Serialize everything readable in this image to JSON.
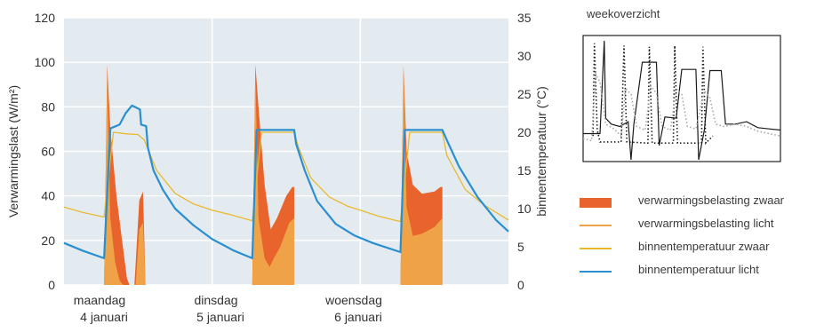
{
  "chart_data": [
    {
      "type": "area",
      "title": "",
      "ylabel_left": "Verwarmingslast (W/m²)",
      "ylabel_right": "binnentemperatuur (°C)",
      "ylim_left": [
        0,
        120
      ],
      "ylim_right": [
        0,
        35
      ],
      "yticks_left": [
        "0",
        "20",
        "40",
        "60",
        "80",
        "100",
        "120"
      ],
      "yticks_right": [
        "0",
        "5",
        "10",
        "15",
        "20",
        "25",
        "30",
        "35"
      ],
      "day_labels": [
        {
          "line1": "maandag",
          "line2": "4 januari"
        },
        {
          "line1": "dinsdag",
          "line2": "5 januari"
        },
        {
          "line1": "woensdag",
          "line2": "6 januari"
        }
      ],
      "x_unit": "hours since start of maandag 4 januari",
      "xlim": [
        0,
        72
      ],
      "grid": true,
      "series": [
        {
          "name": "verwarmingsbelasting zwaar",
          "axis": "left",
          "style": "filled-area",
          "color": "#e8642c",
          "points": [
            [
              6.5,
              0
            ],
            [
              7.0,
              99
            ],
            [
              7.5,
              70
            ],
            [
              8.5,
              40
            ],
            [
              9.5,
              18
            ],
            [
              10.2,
              3
            ],
            [
              10.6,
              0
            ],
            [
              11.4,
              0
            ],
            [
              12.2,
              38
            ],
            [
              12.8,
              42
            ],
            [
              13.2,
              0
            ],
            [
              30.5,
              0
            ],
            [
              31.0,
              99
            ],
            [
              31.5,
              80
            ],
            [
              32.5,
              45
            ],
            [
              33.5,
              25
            ],
            [
              34.5,
              30
            ],
            [
              36,
              40
            ],
            [
              37,
              44
            ],
            [
              37.3,
              44
            ],
            [
              37.3,
              0
            ],
            [
              54.5,
              0
            ],
            [
              55.0,
              99
            ],
            [
              55.5,
              60
            ],
            [
              56.5,
              45
            ],
            [
              58,
              41
            ],
            [
              60,
              42
            ],
            [
              61,
              44
            ],
            [
              61.3,
              44
            ],
            [
              61.3,
              0
            ]
          ]
        },
        {
          "name": "verwarmingsbelasting licht",
          "axis": "left",
          "style": "filled-area",
          "color": "#f0a247",
          "points": [
            [
              6.5,
              0
            ],
            [
              7.0,
              95
            ],
            [
              7.5,
              30
            ],
            [
              8.3,
              10
            ],
            [
              9.0,
              2
            ],
            [
              9.6,
              0
            ],
            [
              11.6,
              0
            ],
            [
              12.2,
              25
            ],
            [
              12.8,
              28
            ],
            [
              13.2,
              0
            ],
            [
              30.5,
              0
            ],
            [
              31.0,
              95
            ],
            [
              31.5,
              30
            ],
            [
              32.5,
              12
            ],
            [
              33.3,
              8
            ],
            [
              34,
              12
            ],
            [
              35,
              17
            ],
            [
              36.5,
              28
            ],
            [
              37.3,
              30
            ],
            [
              37.3,
              0
            ],
            [
              54.5,
              0
            ],
            [
              55.0,
              96
            ],
            [
              55.5,
              35
            ],
            [
              56.5,
              22
            ],
            [
              58,
              23
            ],
            [
              60,
              26
            ],
            [
              61.3,
              30
            ],
            [
              61.3,
              0
            ]
          ]
        },
        {
          "name": "binnentemperatuur zwaar",
          "axis": "right",
          "style": "line",
          "color": "#e8b92f",
          "points": [
            [
              0,
              10.2
            ],
            [
              3,
              9.5
            ],
            [
              6.5,
              8.9
            ],
            [
              8,
              20
            ],
            [
              10,
              19.8
            ],
            [
              12,
              19.7
            ],
            [
              13,
              19
            ],
            [
              15,
              15
            ],
            [
              18,
              12
            ],
            [
              21,
              10.6
            ],
            [
              24,
              9.8
            ],
            [
              27,
              9.2
            ],
            [
              30.5,
              8.4
            ],
            [
              32,
              20
            ],
            [
              37.3,
              20
            ],
            [
              38,
              18
            ],
            [
              40,
              14
            ],
            [
              43,
              11.5
            ],
            [
              46,
              10.3
            ],
            [
              48,
              9.8
            ],
            [
              51,
              9
            ],
            [
              54.5,
              8.3
            ],
            [
              56,
              20
            ],
            [
              61.3,
              20
            ],
            [
              62,
              17
            ],
            [
              65,
              12.5
            ],
            [
              68,
              10.5
            ],
            [
              72,
              8.5
            ]
          ]
        },
        {
          "name": "binnentemperatuur licht",
          "axis": "right",
          "style": "line",
          "color": "#2a8fd0",
          "points": [
            [
              0,
              5.5
            ],
            [
              3,
              4.5
            ],
            [
              6.5,
              3.5
            ],
            [
              7.5,
              20.5
            ],
            [
              9,
              21
            ],
            [
              10,
              22.5
            ],
            [
              11,
              23.5
            ],
            [
              12.3,
              23
            ],
            [
              12.5,
              21
            ],
            [
              13.3,
              20.8
            ],
            [
              13.6,
              18
            ],
            [
              14.5,
              15
            ],
            [
              16,
              12.5
            ],
            [
              18,
              10
            ],
            [
              21,
              7.8
            ],
            [
              24,
              6
            ],
            [
              27.5,
              4.5
            ],
            [
              30.5,
              3.5
            ],
            [
              31.2,
              20.3
            ],
            [
              37.3,
              20.3
            ],
            [
              37.6,
              18.5
            ],
            [
              39,
              15
            ],
            [
              41,
              11
            ],
            [
              44,
              8
            ],
            [
              47,
              6.5
            ],
            [
              50,
              5.5
            ],
            [
              54.5,
              4.3
            ],
            [
              55.2,
              20.3
            ],
            [
              61.3,
              20.3
            ],
            [
              62,
              19
            ],
            [
              64,
              15.5
            ],
            [
              67,
              11.5
            ],
            [
              70,
              8.5
            ],
            [
              72,
              7
            ]
          ]
        }
      ]
    },
    {
      "type": "line",
      "title": "weekoverzicht",
      "grid": false,
      "x_unit": "days",
      "xlim": [
        0,
        7
      ],
      "ylim": [
        0,
        1
      ],
      "series": [
        {
          "style": "solid",
          "color": "#1a1a1a",
          "points": [
            [
              0,
              0.22
            ],
            [
              0.6,
              0.22
            ],
            [
              0.75,
              1.0
            ],
            [
              0.8,
              0.35
            ],
            [
              1.0,
              0.3
            ],
            [
              1.3,
              0.28
            ],
            [
              1.6,
              0.32
            ],
            [
              1.7,
              0.0
            ],
            [
              1.8,
              0.3
            ],
            [
              2.1,
              0.82
            ],
            [
              2.6,
              0.82
            ],
            [
              2.7,
              0.12
            ],
            [
              2.9,
              0.36
            ],
            [
              3.3,
              0.35
            ],
            [
              3.5,
              0.76
            ],
            [
              4.0,
              0.76
            ],
            [
              4.1,
              0.0
            ],
            [
              4.3,
              0.25
            ],
            [
              4.5,
              0.75
            ],
            [
              4.9,
              0.75
            ],
            [
              5.05,
              0.3
            ],
            [
              5.4,
              0.3
            ],
            [
              5.8,
              0.32
            ],
            [
              6.2,
              0.27
            ],
            [
              6.6,
              0.26
            ],
            [
              7,
              0.25
            ]
          ]
        },
        {
          "style": "dotted",
          "color": "#1a1a1a",
          "points": [
            [
              0.35,
              0.2
            ],
            [
              0.4,
              0.98
            ],
            [
              0.5,
              0.25
            ],
            [
              0.6,
              0.15
            ],
            [
              1.35,
              0.15
            ],
            [
              1.45,
              0.96
            ],
            [
              1.55,
              0.15
            ],
            [
              2.3,
              0.14
            ],
            [
              2.35,
              0.95
            ],
            [
              2.45,
              0.14
            ],
            [
              3.2,
              0.14
            ],
            [
              3.25,
              0.96
            ],
            [
              3.35,
              0.14
            ],
            [
              4.2,
              0.14
            ],
            [
              4.25,
              0.95
            ],
            [
              4.35,
              0.14
            ],
            [
              4.6,
              0.2
            ]
          ]
        },
        {
          "style": "dotted",
          "color": "#a8a8a8",
          "points": [
            [
              0,
              0.18
            ],
            [
              0.3,
              0.16
            ],
            [
              0.45,
              0.72
            ],
            [
              0.6,
              0.65
            ],
            [
              0.8,
              0.3
            ],
            [
              1.1,
              0.26
            ],
            [
              1.35,
              0.2
            ],
            [
              1.5,
              0.6
            ],
            [
              1.7,
              0.55
            ],
            [
              1.9,
              0.28
            ],
            [
              2.2,
              0.25
            ],
            [
              2.4,
              0.62
            ],
            [
              2.6,
              0.56
            ],
            [
              2.8,
              0.28
            ],
            [
              3.1,
              0.25
            ],
            [
              3.3,
              0.6
            ],
            [
              3.5,
              0.55
            ],
            [
              3.7,
              0.28
            ],
            [
              4.0,
              0.26
            ],
            [
              4.3,
              0.58
            ],
            [
              4.5,
              0.52
            ],
            [
              4.7,
              0.3
            ],
            [
              5.0,
              0.28
            ],
            [
              5.4,
              0.3
            ],
            [
              5.8,
              0.28
            ],
            [
              6.2,
              0.24
            ],
            [
              6.6,
              0.22
            ],
            [
              7,
              0.2
            ]
          ]
        }
      ]
    }
  ],
  "legend": [
    {
      "label": "verwarmingsbelasting zwaar",
      "color": "#e8642c",
      "style": "block"
    },
    {
      "label": "verwarmingsbelasting licht",
      "color": "#f0a247",
      "style": "line"
    },
    {
      "label": "binnentemperatuur zwaar",
      "color": "#e8b92f",
      "style": "line"
    },
    {
      "label": "binnentemperatuur licht",
      "color": "#2a8fd0",
      "style": "line"
    }
  ]
}
